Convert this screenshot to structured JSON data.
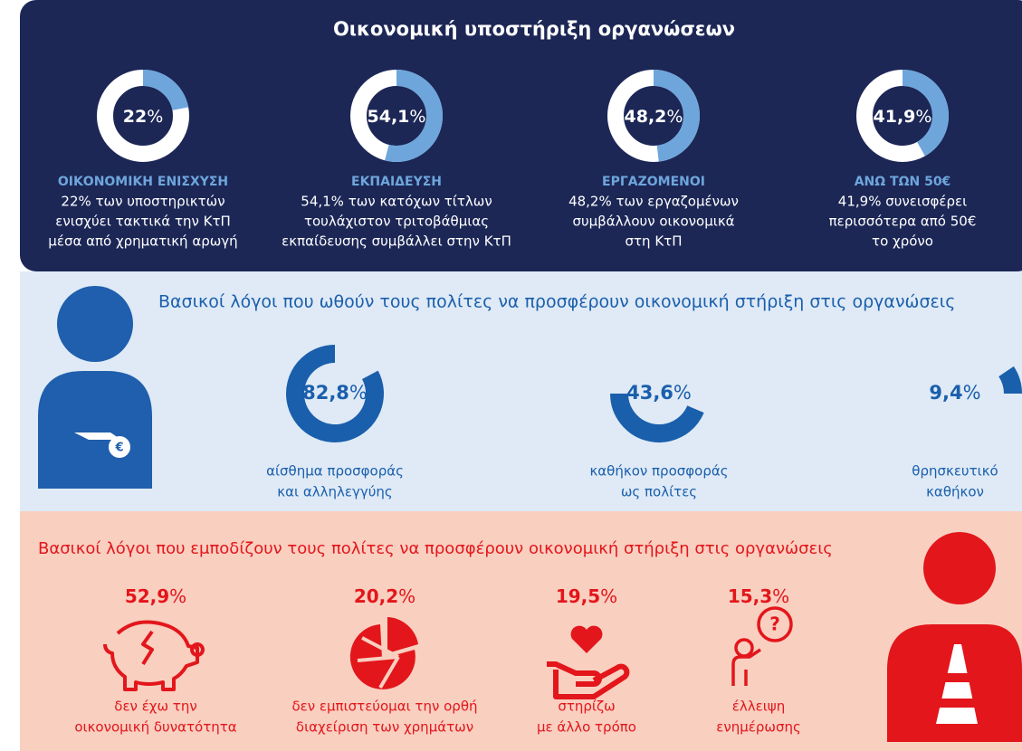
{
  "top": {
    "title": "Οικονομική υποστήριξη οργανώσεων",
    "items": [
      {
        "percent": {
          "value": 22,
          "label": "22"
        },
        "unit": "%",
        "heading": "ΟΙΚΟΝΟΜΙΚΗ ΕΝΙΣΧΥΣΗ",
        "lines": [
          "22% των υποστηρικτών",
          "ενισχύει τακτικά την ΚτΠ",
          "μέσα από χρηματική αρωγή"
        ]
      },
      {
        "percent": {
          "value": 54.1,
          "label": "54,1"
        },
        "unit": "%",
        "heading": "ΕΚΠΑΙΔΕΥΣΗ",
        "lines": [
          "54,1% των κατόχων τίτλων",
          "τουλάχιστον τριτοβάθμιας",
          "εκπαίδευσης συμβάλλει στην ΚτΠ"
        ]
      },
      {
        "percent": {
          "value": 48.2,
          "label": "48,2"
        },
        "unit": "%",
        "heading": "ΕΡΓΑΖΟΜΕΝΟΙ",
        "lines": [
          "48,2% των εργαζομένων",
          "συμβάλλουν οικονομικά",
          "στη ΚτΠ"
        ]
      },
      {
        "percent": {
          "value": 41.9,
          "label": "41,9"
        },
        "unit": "%",
        "heading": "ΑΝΩ ΤΩΝ 50€",
        "lines": [
          "41,9% συνεισφέρει",
          "περισσότερα από 50€",
          "το χρόνο"
        ]
      }
    ]
  },
  "middle": {
    "title": "Βασικοί λόγοι που ωθούν τους πολίτες να προσφέρουν οικονομική στήριξη στις οργανώσεις",
    "items": [
      {
        "percent": {
          "value": 82.8,
          "label": "82,8"
        },
        "unit": "%",
        "lines": [
          "αίσθημα προσφοράς",
          "και αλληλεγγύης"
        ]
      },
      {
        "percent": {
          "value": 43.6,
          "label": "43,6"
        },
        "unit": "%",
        "lines": [
          "καθήκον προσφοράς",
          "ως πολίτες"
        ]
      },
      {
        "percent": {
          "value": 9.4,
          "label": "9,4"
        },
        "unit": "%",
        "lines": [
          "θρησκευτικό",
          "καθήκον"
        ]
      }
    ]
  },
  "bottom": {
    "title": "Βασικοί λόγοι που εμποδίζουν τους πολίτες να προσφέρουν οικονομική στήριξη στις οργανώσεις",
    "items": [
      {
        "percent": "52,9",
        "unit": "%",
        "lines": [
          "δεν έχω την",
          "οικονομική δυνατότητα"
        ]
      },
      {
        "percent": "20,2",
        "unit": "%",
        "lines": [
          "δεν εμπιστεύομαι την ορθή",
          "διαχείριση των χρημάτων"
        ]
      },
      {
        "percent": "19,5",
        "unit": "%",
        "lines": [
          "στηρίζω",
          "με άλλο τρόπο"
        ]
      },
      {
        "percent": "15,3",
        "unit": "%",
        "lines": [
          "έλλειψη",
          "ενημέρωσης"
        ]
      }
    ]
  }
}
